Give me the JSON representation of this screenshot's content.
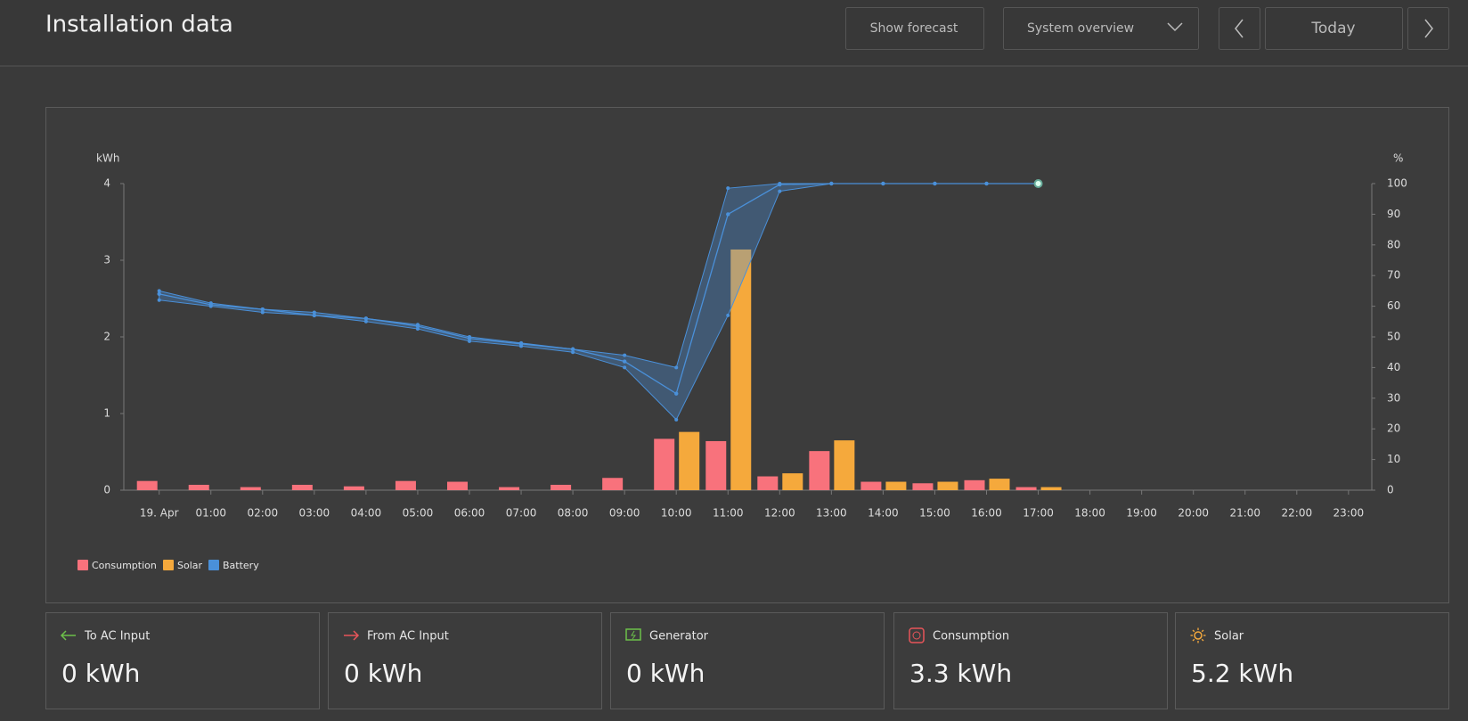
{
  "header": {
    "title": "Installation data",
    "buttons": [
      "Show forecast",
      "System overview",
      "Today"
    ]
  },
  "chart_data": {
    "type": "bar",
    "y_label": "kWh",
    "y2_label": "%",
    "categories": [
      "19. Apr",
      "01:00",
      "02:00",
      "03:00",
      "04:00",
      "05:00",
      "06:00",
      "07:00",
      "08:00",
      "09:00",
      "10:00",
      "11:00",
      "12:00",
      "13:00",
      "14:00",
      "15:00",
      "16:00",
      "17:00",
      "18:00",
      "19:00",
      "20:00",
      "21:00",
      "22:00",
      "23:00"
    ],
    "series": [
      {
        "name": "Consumption",
        "color": "#f8727c",
        "values": [
          0.12,
          0.07,
          0.04,
          0.07,
          0.05,
          0.12,
          0.11,
          0.04,
          0.07,
          0.16,
          0.67,
          0.64,
          0.18,
          0.51,
          0.11,
          0.09,
          0.13,
          0.04,
          null,
          null,
          null,
          null,
          null,
          null
        ]
      },
      {
        "name": "Solar",
        "color": "#f5a93c",
        "values": [
          0,
          0,
          0,
          0,
          0,
          0,
          0,
          0,
          0,
          0,
          0.76,
          3.14,
          0.22,
          0.65,
          0.11,
          0.11,
          0.15,
          0.04,
          null,
          null,
          null,
          null,
          null,
          null
        ]
      },
      {
        "name": "Battery",
        "color": "#4a90d9",
        "axis": "y2",
        "type": "line",
        "values": [
          64,
          60.5,
          59,
          57,
          56,
          53.5,
          49.5,
          47.7,
          46,
          42,
          31.5,
          90,
          99.7,
          100,
          100,
          100,
          100,
          100,
          null,
          null,
          null,
          null,
          null,
          null
        ],
        "high": [
          65,
          61,
          59,
          58,
          56,
          54,
          50,
          48,
          46,
          44,
          40,
          98.5,
          100,
          100,
          100,
          100,
          100,
          null,
          null,
          null,
          null,
          null,
          null,
          null
        ],
        "low": [
          62,
          60,
          58,
          57,
          55,
          52.6,
          48.6,
          47,
          45,
          40,
          23,
          57,
          97.5,
          100,
          100,
          100,
          100,
          null,
          null,
          null,
          null,
          null,
          null,
          null
        ]
      }
    ],
    "ylim": [
      0,
      4
    ],
    "yticks": [
      0,
      1,
      2,
      3,
      4
    ],
    "y2lim": [
      0,
      100
    ],
    "y2ticks": [
      0,
      10,
      20,
      30,
      40,
      50,
      60,
      70,
      80,
      90,
      100
    ],
    "grid": false,
    "legend": "bottom-left"
  },
  "summary": [
    {
      "label": "To AC Input",
      "value": "0 kWh"
    },
    {
      "label": "From AC Input",
      "value": "0 kWh"
    },
    {
      "label": "Generator",
      "value": "0 kWh"
    },
    {
      "label": "Consumption",
      "value": "3.3 kWh"
    },
    {
      "label": "Solar",
      "value": "5.2 kWh"
    }
  ]
}
